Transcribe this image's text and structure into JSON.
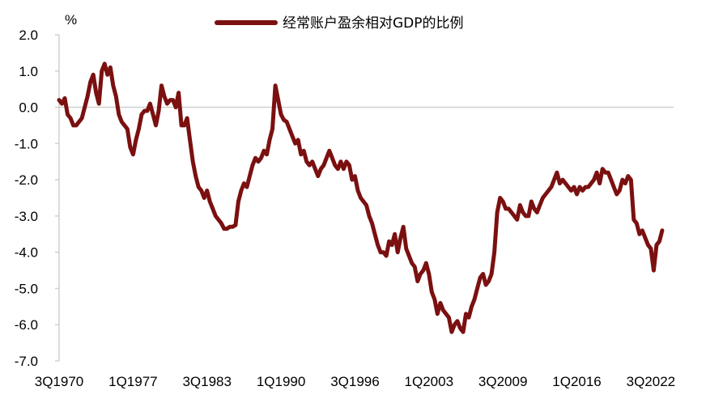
{
  "chart_data": {
    "type": "line",
    "unit_label": "%",
    "legend_position": "top",
    "grid": false,
    "ylim": [
      -7.0,
      2.0
    ],
    "y_ticks": [
      "2.0",
      "1.0",
      "0.0",
      "-1.0",
      "-2.0",
      "-3.0",
      "-4.0",
      "-5.0",
      "-6.0",
      "-7.0"
    ],
    "y_tick_values": [
      2,
      1,
      0,
      -1,
      -2,
      -3,
      -4,
      -5,
      -6,
      -7
    ],
    "x_tick_labels": [
      "3Q1970",
      "1Q1977",
      "3Q1983",
      "1Q1990",
      "3Q1996",
      "1Q2003",
      "3Q2009",
      "1Q2016",
      "3Q2022"
    ],
    "x_tick_values": [
      1970.5,
      1977.0,
      1983.5,
      1990.0,
      1996.5,
      2003.0,
      2009.5,
      2016.0,
      2022.5
    ],
    "xlim": [
      1970.5,
      2024.5
    ],
    "series": [
      {
        "name": "经常账户盈余相对GDP的比例",
        "color": "#7b1010",
        "x": [
          1970.5,
          1970.75,
          1971.0,
          1971.25,
          1971.5,
          1971.75,
          1972.0,
          1972.25,
          1972.5,
          1972.75,
          1973.0,
          1973.25,
          1973.5,
          1973.75,
          1974.0,
          1974.25,
          1974.5,
          1974.75,
          1975.0,
          1975.25,
          1975.5,
          1975.75,
          1976.0,
          1976.25,
          1976.5,
          1976.75,
          1977.0,
          1977.25,
          1977.5,
          1977.75,
          1978.0,
          1978.25,
          1978.5,
          1978.75,
          1979.0,
          1979.25,
          1979.5,
          1979.75,
          1980.0,
          1980.25,
          1980.5,
          1980.75,
          1981.0,
          1981.25,
          1981.5,
          1981.75,
          1982.0,
          1982.25,
          1982.5,
          1982.75,
          1983.0,
          1983.25,
          1983.5,
          1983.75,
          1984.0,
          1984.25,
          1984.5,
          1984.75,
          1985.0,
          1985.25,
          1985.5,
          1985.75,
          1986.0,
          1986.25,
          1986.5,
          1986.75,
          1987.0,
          1987.25,
          1987.5,
          1987.75,
          1988.0,
          1988.25,
          1988.5,
          1988.75,
          1989.0,
          1989.25,
          1989.5,
          1989.75,
          1990.0,
          1990.25,
          1990.5,
          1990.75,
          1991.0,
          1991.25,
          1991.5,
          1991.75,
          1992.0,
          1992.25,
          1992.5,
          1992.75,
          1993.0,
          1993.25,
          1993.5,
          1993.75,
          1994.0,
          1994.25,
          1994.5,
          1994.75,
          1995.0,
          1995.25,
          1995.5,
          1995.75,
          1996.0,
          1996.25,
          1996.5,
          1996.75,
          1997.0,
          1997.25,
          1997.5,
          1997.75,
          1998.0,
          1998.25,
          1998.5,
          1998.75,
          1999.0,
          1999.25,
          1999.5,
          1999.75,
          2000.0,
          2000.25,
          2000.5,
          2000.75,
          2001.0,
          2001.25,
          2001.5,
          2001.75,
          2002.0,
          2002.25,
          2002.5,
          2002.75,
          2003.0,
          2003.25,
          2003.5,
          2003.75,
          2004.0,
          2004.25,
          2004.5,
          2004.75,
          2005.0,
          2005.25,
          2005.5,
          2005.75,
          2006.0,
          2006.25,
          2006.5,
          2006.75,
          2007.0,
          2007.25,
          2007.5,
          2007.75,
          2008.0,
          2008.25,
          2008.5,
          2008.75,
          2009.0,
          2009.25,
          2009.5,
          2009.75,
          2010.0,
          2010.25,
          2010.5,
          2010.75,
          2011.0,
          2011.25,
          2011.5,
          2011.75,
          2012.0,
          2012.25,
          2012.5,
          2012.75,
          2013.0,
          2013.25,
          2013.5,
          2013.75,
          2014.0,
          2014.25,
          2014.5,
          2014.75,
          2015.0,
          2015.25,
          2015.5,
          2015.75,
          2016.0,
          2016.25,
          2016.5,
          2016.75,
          2017.0,
          2017.25,
          2017.5,
          2017.75,
          2018.0,
          2018.25,
          2018.5,
          2018.75,
          2019.0,
          2019.25,
          2019.5,
          2019.75,
          2020.0,
          2020.25,
          2020.5,
          2020.75,
          2021.0,
          2021.25,
          2021.5,
          2021.75,
          2022.0,
          2022.25,
          2022.5,
          2022.75,
          2023.0,
          2023.25,
          2023.5
        ],
        "values": [
          0.2,
          0.1,
          0.25,
          -0.2,
          -0.3,
          -0.5,
          -0.5,
          -0.4,
          -0.3,
          0.0,
          0.3,
          0.7,
          0.9,
          0.4,
          0.1,
          1.0,
          1.2,
          0.9,
          1.1,
          0.6,
          0.3,
          -0.2,
          -0.4,
          -0.5,
          -0.6,
          -1.1,
          -1.3,
          -0.9,
          -0.6,
          -0.2,
          -0.1,
          -0.1,
          0.1,
          -0.2,
          -0.5,
          -0.1,
          0.6,
          0.3,
          0.1,
          0.2,
          0.2,
          0.0,
          0.4,
          -0.5,
          -0.5,
          -0.3,
          -0.9,
          -1.5,
          -1.9,
          -2.2,
          -2.3,
          -2.5,
          -2.3,
          -2.6,
          -2.8,
          -3.0,
          -3.1,
          -3.2,
          -3.35,
          -3.35,
          -3.3,
          -3.3,
          -3.25,
          -2.6,
          -2.3,
          -2.1,
          -2.2,
          -1.9,
          -1.6,
          -1.4,
          -1.5,
          -1.4,
          -1.2,
          -1.3,
          -0.9,
          -0.6,
          0.6,
          0.2,
          -0.2,
          -0.35,
          -0.4,
          -0.6,
          -0.8,
          -1.0,
          -0.9,
          -1.3,
          -1.2,
          -1.5,
          -1.6,
          -1.5,
          -1.7,
          -1.9,
          -1.7,
          -1.6,
          -1.4,
          -1.2,
          -1.4,
          -1.6,
          -1.7,
          -1.5,
          -1.7,
          -1.5,
          -1.6,
          -2.0,
          -1.9,
          -2.3,
          -2.5,
          -2.6,
          -2.7,
          -3.0,
          -3.2,
          -3.5,
          -3.8,
          -4.0,
          -4.0,
          -4.1,
          -3.7,
          -3.8,
          -3.5,
          -4.0,
          -3.6,
          -3.3,
          -3.9,
          -4.1,
          -4.3,
          -4.4,
          -4.8,
          -4.6,
          -4.5,
          -4.3,
          -4.6,
          -5.1,
          -5.3,
          -5.7,
          -5.4,
          -5.6,
          -5.7,
          -5.8,
          -6.2,
          -6.0,
          -5.9,
          -6.1,
          -6.2,
          -5.7,
          -5.8,
          -5.5,
          -5.3,
          -5.0,
          -4.7,
          -4.6,
          -4.9,
          -4.8,
          -4.6,
          -4.0,
          -2.9,
          -2.5,
          -2.6,
          -2.8,
          -2.8,
          -2.9,
          -3.0,
          -3.1,
          -2.7,
          -2.9,
          -3.0,
          -3.0,
          -2.6,
          -2.8,
          -2.9,
          -2.7,
          -2.5,
          -2.4,
          -2.3,
          -2.2,
          -2.0,
          -1.8,
          -2.1,
          -2.0,
          -2.1,
          -2.2,
          -2.3,
          -2.2,
          -2.4,
          -2.2,
          -2.3,
          -2.2,
          -2.2,
          -2.1,
          -2.0,
          -1.8,
          -2.1,
          -1.7,
          -1.8,
          -1.8,
          -2.0,
          -2.2,
          -2.4,
          -2.3,
          -2.0,
          -2.1,
          -1.9,
          -2.0,
          -3.1,
          -3.2,
          -3.5,
          -3.4,
          -3.6,
          -3.8,
          -3.9,
          -4.5,
          -3.8,
          -3.7,
          -3.4
        ]
      }
    ]
  }
}
